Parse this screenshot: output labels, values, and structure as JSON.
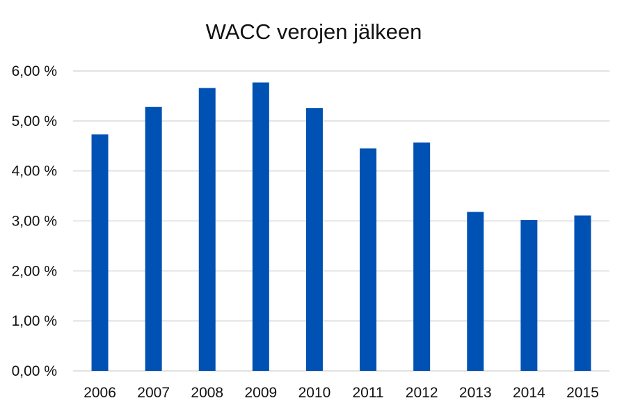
{
  "chart_data": {
    "type": "bar",
    "title": "WACC verojen jälkeen",
    "xlabel": "",
    "ylabel": "",
    "categories": [
      "2006",
      "2007",
      "2008",
      "2009",
      "2010",
      "2011",
      "2012",
      "2013",
      "2014",
      "2015"
    ],
    "values": [
      4.73,
      5.28,
      5.66,
      5.77,
      5.26,
      4.45,
      4.57,
      3.18,
      3.02,
      3.11
    ],
    "ylim": [
      0,
      6
    ],
    "yticks": [
      0,
      1,
      2,
      3,
      4,
      5,
      6
    ],
    "ytick_labels": [
      "0,00 %",
      "1,00 %",
      "2,00 %",
      "3,00 %",
      "4,00 %",
      "5,00 %",
      "6,00 %"
    ],
    "grid": true,
    "legend": "none",
    "bar_color": "#0051B4",
    "grid_color": "#d9d9d9"
  }
}
